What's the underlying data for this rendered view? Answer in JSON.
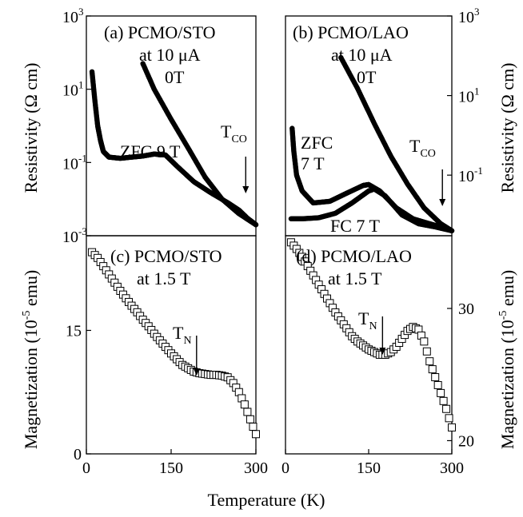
{
  "x_axis": {
    "label": "Temperature (K)",
    "ticks": [
      "0",
      "150",
      "300"
    ],
    "xlim": [
      0,
      300
    ]
  },
  "y_labels": {
    "resistivity_left": "Resistivity (Ω cm)",
    "resistivity_right": "Resistivity (Ω cm)",
    "magnetization_left": {
      "main": "Magnetization (10",
      "exp": "-5",
      "tail": " emu)"
    },
    "magnetization_right": {
      "main": "Magnetization (10",
      "exp": "-5",
      "tail": " emu)"
    }
  },
  "panels": {
    "a": {
      "title": "(a) PCMO/STO",
      "line2": "at 10 μA",
      "line3": "0T",
      "zfc": "ZFC 9 T",
      "tco_main": "T",
      "tco_sub": "CO",
      "yticks": [
        {
          "base": "10",
          "exp": "3",
          "value": 1000
        },
        {
          "base": "10",
          "exp": "1",
          "value": 10
        },
        {
          "base": "10",
          "exp": "-1",
          "value": 0.1
        },
        {
          "base": "10",
          "exp": "-3",
          "value": 0.001
        }
      ]
    },
    "b": {
      "title": "(b) PCMO/LAO",
      "line2": "at 10 μA",
      "line3": "0T",
      "zfc1": "ZFC",
      "zfc2": "7 T",
      "fc": "FC 7 T",
      "tco_main": "T",
      "tco_sub": "CO",
      "yticks": [
        {
          "base": "10",
          "exp": "3",
          "value": 1000
        },
        {
          "base": "10",
          "exp": "1",
          "value": 10
        },
        {
          "base": "10",
          "exp": "-1",
          "value": 0.1
        }
      ]
    },
    "c": {
      "title": "(c)  PCMO/STO",
      "line2": "at 1.5 T",
      "tn_main": "T",
      "tn_sub": "N",
      "yticks": [
        "0",
        "15"
      ]
    },
    "d": {
      "title": "(d) PCMO/LAO",
      "line2": "at 1.5 T",
      "tn_main": "T",
      "tn_sub": "N",
      "yticks": [
        "20",
        "30"
      ]
    }
  },
  "chart_data": [
    {
      "panel": "a",
      "type": "scatter",
      "title": "(a) PCMO/STO",
      "xlabel": "Temperature (K)",
      "ylabel": "Resistivity (Ω cm)",
      "xlim": [
        0,
        300
      ],
      "ylim": [
        0.001,
        1000
      ],
      "yscale": "log",
      "series": [
        {
          "name": "0T",
          "x": [
            100,
            120,
            150,
            180,
            210,
            240,
            270,
            300
          ],
          "y": [
            50,
            10,
            1.5,
            0.25,
            0.04,
            0.01,
            0.004,
            0.002
          ]
        },
        {
          "name": "ZFC 9 T",
          "x": [
            10,
            15,
            20,
            25,
            30,
            40,
            60,
            80,
            100,
            120,
            140,
            160,
            190,
            220,
            250,
            270,
            285,
            300
          ],
          "y": [
            30,
            5,
            1,
            0.4,
            0.2,
            0.14,
            0.13,
            0.14,
            0.15,
            0.17,
            0.16,
            0.08,
            0.03,
            0.015,
            0.008,
            0.005,
            0.003,
            0.002
          ]
        }
      ],
      "annotations": [
        "T_CO arrow at ~280 K"
      ]
    },
    {
      "panel": "b",
      "type": "scatter",
      "title": "(b) PCMO/LAO",
      "xlabel": "Temperature (K)",
      "ylabel": "Resistivity (Ω cm)",
      "xlim": [
        0,
        300
      ],
      "ylim": [
        0.003,
        1000
      ],
      "yscale": "log",
      "series": [
        {
          "name": "0T",
          "x": [
            100,
            130,
            160,
            190,
            220,
            250,
            280,
            300
          ],
          "y": [
            90,
            15,
            2,
            0.3,
            0.06,
            0.015,
            0.006,
            0.004
          ]
        },
        {
          "name": "ZFC 7 T",
          "x": [
            12,
            15,
            20,
            30,
            50,
            80,
            110,
            140,
            150,
            170,
            200,
            230,
            260,
            280,
            300
          ],
          "y": [
            1.5,
            0.4,
            0.1,
            0.04,
            0.02,
            0.022,
            0.035,
            0.055,
            0.058,
            0.04,
            0.015,
            0.008,
            0.006,
            0.005,
            0.004
          ]
        },
        {
          "name": "FC 7 T",
          "x": [
            10,
            30,
            60,
            90,
            120,
            150,
            160,
            180,
            210,
            240,
            270,
            300
          ],
          "y": [
            0.008,
            0.008,
            0.0085,
            0.011,
            0.02,
            0.04,
            0.045,
            0.03,
            0.01,
            0.006,
            0.005,
            0.004
          ]
        }
      ],
      "annotations": [
        "T_CO arrow at ~280 K"
      ]
    },
    {
      "panel": "c",
      "type": "scatter",
      "title": "(c)  PCMO/STO",
      "xlabel": "Temperature (K)",
      "ylabel": "Magnetization (10^-5 emu)",
      "xlim": [
        0,
        300
      ],
      "ylim": [
        0,
        26.5
      ],
      "series": [
        {
          "name": "at 1.5 T",
          "x": [
            10,
            20,
            30,
            40,
            50,
            60,
            70,
            80,
            90,
            100,
            110,
            120,
            130,
            140,
            150,
            160,
            170,
            180,
            190,
            200,
            210,
            220,
            230,
            240,
            250,
            260,
            270,
            280,
            290,
            300
          ],
          "y": [
            24.5,
            23.8,
            22.8,
            21.8,
            20.8,
            19.8,
            18.9,
            18.0,
            17.2,
            16.3,
            15.5,
            14.6,
            13.8,
            13.0,
            12.2,
            11.5,
            10.8,
            10.4,
            10.0,
            9.8,
            9.7,
            9.6,
            9.6,
            9.5,
            9.3,
            8.6,
            7.5,
            6.0,
            4.2,
            2.4
          ]
        }
      ],
      "annotations": [
        "T_N arrow at ~195 K"
      ]
    },
    {
      "panel": "d",
      "type": "scatter",
      "title": "(d) PCMO/LAO",
      "xlabel": "Temperature (K)",
      "ylabel": "Magnetization (10^-5 emu)",
      "xlim": [
        0,
        300
      ],
      "ylim": [
        19,
        35.5
      ],
      "series": [
        {
          "name": "at 1.5 T",
          "x": [
            10,
            20,
            30,
            40,
            50,
            60,
            70,
            80,
            90,
            100,
            110,
            120,
            130,
            140,
            150,
            160,
            170,
            180,
            190,
            200,
            210,
            220,
            230,
            240,
            250,
            260,
            270,
            280,
            290,
            300
          ],
          "y": [
            35,
            34.5,
            33.9,
            33.2,
            32.5,
            31.8,
            31.1,
            30.4,
            29.7,
            29.1,
            28.5,
            27.9,
            27.5,
            27.2,
            26.9,
            26.7,
            26.5,
            26.5,
            26.7,
            27.1,
            27.7,
            28.3,
            28.6,
            28.4,
            27.5,
            26.0,
            24.8,
            23.6,
            22.4,
            21.0
          ]
        }
      ],
      "annotations": [
        "T_N arrow at ~175 K"
      ]
    }
  ]
}
